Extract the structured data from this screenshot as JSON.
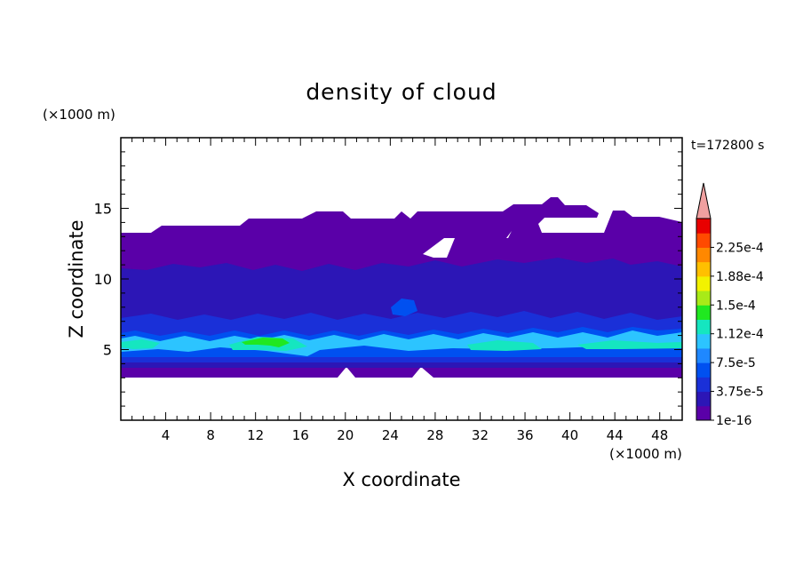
{
  "chart_data": {
    "type": "heatmap",
    "title": "density of cloud",
    "time_label": "t=172800 s",
    "xlabel": "X coordinate",
    "ylabel": "Z coordinate",
    "x_unit": "(×1000 m)",
    "y_unit": "(×1000 m)",
    "xlim": [
      0,
      50
    ],
    "ylim": [
      0,
      20
    ],
    "x_ticks": [
      "4",
      "8",
      "12",
      "16",
      "20",
      "24",
      "28",
      "32",
      "36",
      "40",
      "44",
      "48"
    ],
    "y_ticks": [
      "5",
      "10",
      "15"
    ],
    "colorbar_labels": [
      "2.25e-4",
      "1.88e-4",
      "1.5e-4",
      "1.12e-4",
      "7.5e-5",
      "3.75e-5",
      "1e-16"
    ],
    "colorbar_colors": [
      "#5a00a8",
      "#2c16b6",
      "#1a30d8",
      "#0050f0",
      "#1f88ff",
      "#2cc4ff",
      "#15e6c0",
      "#20e820",
      "#a8ea18",
      "#f2f200",
      "#ffc000",
      "#ff8800",
      "#ff4a00",
      "#e80000"
    ],
    "colorbar_extend_color": "#f0a0a0",
    "cloud_bands": [
      {
        "level": "1e-16",
        "z_bottom": 3.2,
        "z_top": 13.3
      },
      {
        "level": "3.75e-5",
        "z_bottom": 3.6,
        "z_top": 10.5
      },
      {
        "level": "7.5e-5",
        "z_bottom": 4.0,
        "z_top": 6.6
      },
      {
        "level": "1.12e-4",
        "z_bottom": 4.6,
        "z_top": 5.8
      },
      {
        "level": "1.5e-4",
        "z_bottom": 5.3,
        "z_top": 6.0
      }
    ]
  }
}
